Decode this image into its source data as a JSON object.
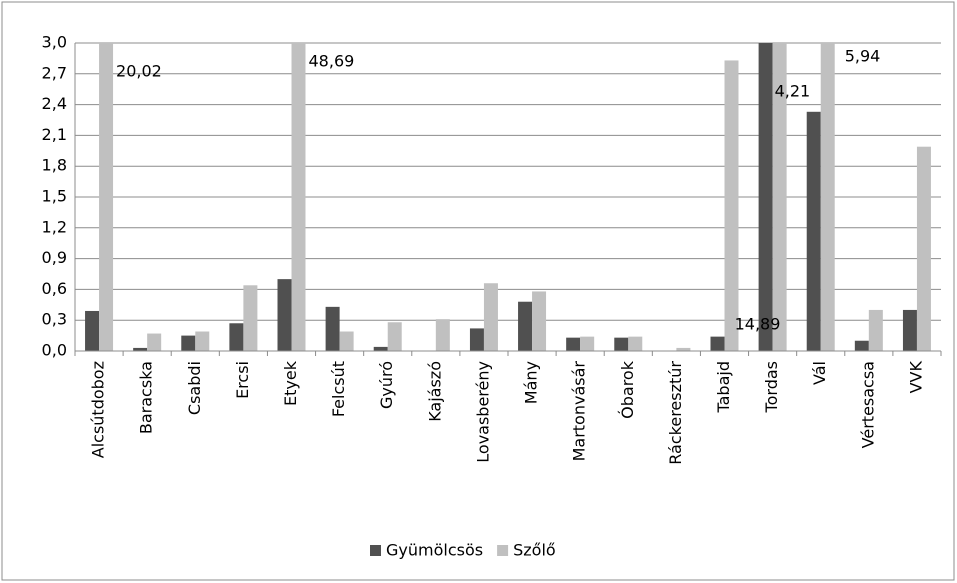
{
  "chart_data": {
    "type": "bar",
    "categories": [
      "Alcsútdoboz",
      "Baracska",
      "Csabdi",
      "Ercsi",
      "Etyek",
      "Felcsút",
      "Gyúró",
      "Kajászó",
      "Lovasberény",
      "Mány",
      "Martonvásár",
      "Óbarok",
      "Ráckeresztúr",
      "Tabajd",
      "Tordas",
      "Vál",
      "Vértesacsa",
      "VVK"
    ],
    "series": [
      {
        "name": "Gyümölcsös",
        "color": "#505050",
        "values": [
          0.39,
          0.03,
          0.15,
          0.27,
          0.7,
          0.43,
          0.04,
          0,
          0.22,
          0.48,
          0.13,
          0.13,
          0,
          0.14,
          14.89,
          2.33,
          0.1,
          0.4
        ],
        "value_labels": [
          null,
          null,
          null,
          null,
          null,
          null,
          null,
          null,
          null,
          null,
          null,
          null,
          null,
          null,
          "14,89",
          null,
          null,
          null
        ]
      },
      {
        "name": "Szőlő",
        "color": "#c0c0c0",
        "values": [
          20.02,
          0.17,
          0.19,
          0.64,
          48.69,
          0.19,
          0.28,
          0.31,
          0.66,
          0.58,
          0.14,
          0.14,
          0.03,
          2.83,
          4.21,
          5.94,
          0.4,
          1.99
        ],
        "value_labels": [
          "20,02",
          null,
          null,
          null,
          "48,69",
          null,
          null,
          null,
          null,
          null,
          null,
          null,
          null,
          null,
          "4,21",
          "5,94",
          null,
          null
        ]
      }
    ],
    "ylim": [
      0,
      3.0
    ],
    "yticks": [
      {
        "value": 0,
        "label": "0,0"
      },
      {
        "value": 0.3,
        "label": "0,3"
      },
      {
        "value": 0.6,
        "label": "0,6"
      },
      {
        "value": 0.9,
        "label": "0,9"
      },
      {
        "value": 1.2,
        "label": "1,2"
      },
      {
        "value": 1.5,
        "label": "1,5"
      },
      {
        "value": 1.8,
        "label": "1,8"
      },
      {
        "value": 2.1,
        "label": "2,1"
      },
      {
        "value": 2.4,
        "label": "2,4"
      },
      {
        "value": 2.7,
        "label": "2,7"
      },
      {
        "value": 3.0,
        "label": "3,0"
      }
    ],
    "grid": true,
    "legend": "bottom"
  }
}
